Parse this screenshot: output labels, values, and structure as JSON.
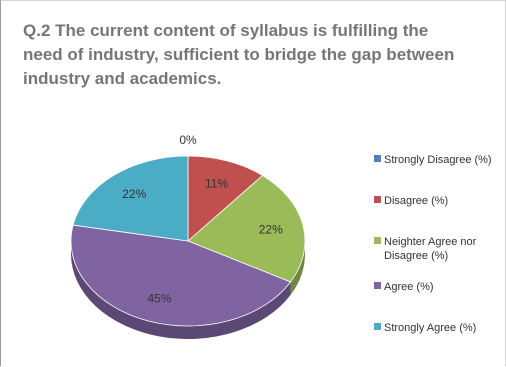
{
  "chart_data": {
    "type": "pie",
    "title": "Q.2 The current content of syllabus is fulfilling the need of industry, sufficient to bridge the gap between industry and academics.",
    "categories": [
      "Strongly Disagree (%)",
      "Disagree (%)",
      "Neighter Agree nor Disagree (%)",
      "Agree (%)",
      "Strongly Agree (%)"
    ],
    "values": [
      0,
      11,
      22,
      45,
      22
    ],
    "data_labels": [
      "0%",
      "11%",
      "22%",
      "45%",
      "22%"
    ],
    "colors": [
      "#4f81bd",
      "#c0504d",
      "#9bbb59",
      "#8064a2",
      "#4bacc6"
    ],
    "legend_position": "right",
    "style": "3d"
  }
}
